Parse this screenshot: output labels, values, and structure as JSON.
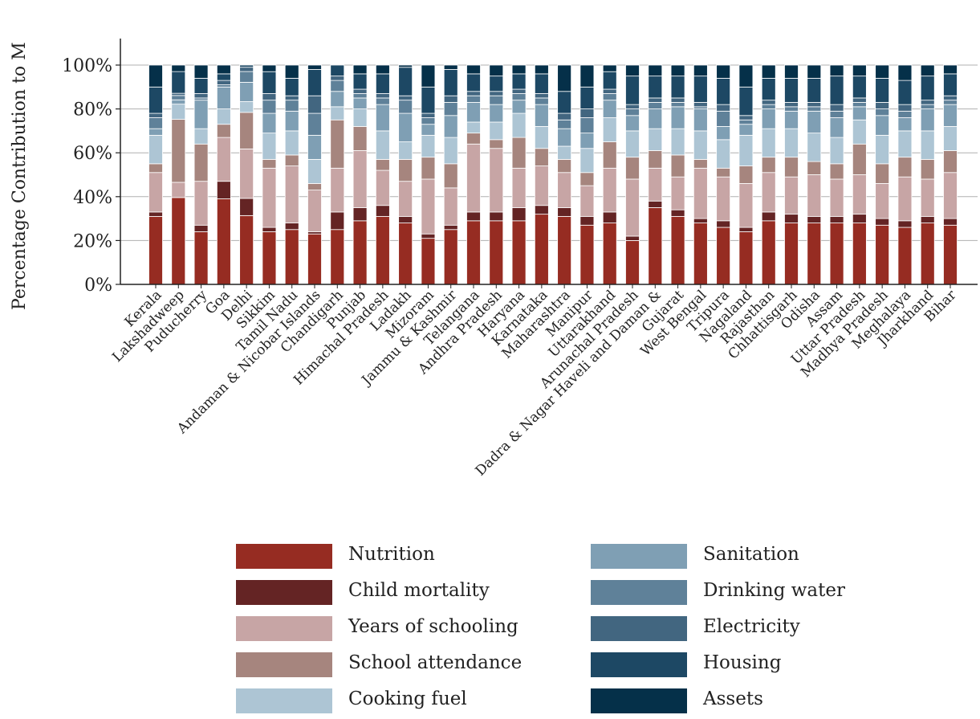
{
  "chart_data": {
    "type": "bar",
    "stacked": true,
    "ylabel": "Percentage Contribution to M",
    "ylim": [
      0,
      100
    ],
    "yticks": [
      0,
      20,
      40,
      60,
      80,
      100
    ],
    "ytick_labels": [
      "0%",
      "20%",
      "40%",
      "60%",
      "80%",
      "100%"
    ],
    "grid": "horizontal",
    "legend_position": "bottom",
    "categories": [
      "Kerala",
      "Lakshadweep",
      "Puducherry",
      "Goa",
      "Delhi",
      "Sikkim",
      "Tamil Nadu",
      "Andaman & Nicobar Islands",
      "Chandigarh",
      "Punjab",
      "Himachal Pradesh",
      "Ladakh",
      "Mizoram",
      "Jammu & Kashmir",
      "Telangana",
      "Andhra Pradesh",
      "Haryana",
      "Karnataka",
      "Maharashtra",
      "Manipur",
      "Uttarakhand",
      "Arunachal Pradesh",
      "Dadra & Nagar Haveli and Daman &",
      "Gujarat",
      "West Bengal",
      "Tripura",
      "Nagaland",
      "Rajasthan",
      "Chhattisgarh",
      "Odisha",
      "Assam",
      "Uttar Pradesh",
      "Madhya Pradesh",
      "Meghalaya",
      "Jharkhand",
      "Bihar"
    ],
    "series": [
      {
        "name": "Nutrition",
        "color": "#962c22",
        "values": [
          31,
          40,
          24,
          39,
          32,
          24,
          25,
          23,
          25,
          29,
          31,
          28,
          21,
          25,
          29,
          29,
          29,
          32,
          31,
          27,
          28,
          20,
          35,
          31,
          28,
          26,
          24,
          29,
          28,
          28,
          28,
          28,
          27,
          26,
          28,
          27
        ]
      },
      {
        "name": "Child mortality",
        "color": "#642424",
        "values": [
          2,
          0,
          3,
          8,
          8,
          2,
          3,
          1,
          8,
          6,
          5,
          3,
          2,
          2,
          4,
          4,
          6,
          4,
          4,
          4,
          5,
          2,
          3,
          3,
          2,
          3,
          2,
          4,
          4,
          3,
          3,
          4,
          3,
          3,
          3,
          3
        ]
      },
      {
        "name": "Years of schooling",
        "color": "#c7a5a5",
        "values": [
          18,
          7,
          20,
          20,
          23,
          27,
          26,
          19,
          20,
          26,
          16,
          16,
          25,
          17,
          31,
          29,
          18,
          18,
          16,
          14,
          20,
          26,
          15,
          15,
          23,
          20,
          20,
          18,
          17,
          19,
          17,
          18,
          16,
          20,
          17,
          21
        ]
      },
      {
        "name": "School attendance",
        "color": "#a6857e",
        "values": [
          4,
          29,
          17,
          6,
          17,
          4,
          5,
          3,
          22,
          11,
          5,
          10,
          10,
          11,
          5,
          4,
          14,
          8,
          6,
          6,
          12,
          10,
          8,
          10,
          4,
          4,
          8,
          7,
          9,
          6,
          7,
          14,
          9,
          9,
          9,
          10
        ]
      },
      {
        "name": "Cooking fuel",
        "color": "#adc5d4",
        "values": [
          13,
          7,
          7,
          7,
          5,
          12,
          11,
          11,
          6,
          8,
          13,
          8,
          10,
          12,
          5,
          8,
          11,
          10,
          6,
          11,
          11,
          12,
          10,
          12,
          13,
          13,
          14,
          13,
          13,
          13,
          12,
          11,
          13,
          12,
          13,
          11
        ]
      },
      {
        "name": "Sanitation",
        "color": "#7f9fb4",
        "values": [
          3,
          2,
          13,
          10,
          9,
          9,
          9,
          11,
          7,
          5,
          12,
          13,
          5,
          10,
          9,
          8,
          6,
          10,
          8,
          7,
          8,
          7,
          9,
          10,
          10,
          6,
          5,
          9,
          8,
          10,
          9,
          6,
          9,
          6,
          10,
          10
        ]
      },
      {
        "name": "Drinking water",
        "color": "#5f8199",
        "values": [
          5,
          2,
          1,
          1,
          5,
          6,
          5,
          10,
          5,
          2,
          3,
          6,
          3,
          6,
          3,
          4,
          3,
          3,
          4,
          7,
          3,
          3,
          3,
          2,
          1,
          7,
          2,
          2,
          2,
          2,
          3,
          2,
          3,
          3,
          2,
          2
        ]
      },
      {
        "name": "Electricity",
        "color": "#426680",
        "values": [
          2,
          1,
          2,
          2,
          2,
          3,
          2,
          8,
          2,
          2,
          2,
          2,
          2,
          3,
          2,
          2,
          2,
          2,
          3,
          4,
          2,
          2,
          2,
          2,
          2,
          3,
          2,
          2,
          2,
          2,
          3,
          2,
          3,
          3,
          2,
          2
        ]
      },
      {
        "name": "Housing",
        "color": "#1d4864",
        "values": [
          12,
          10,
          7,
          3,
          1,
          10,
          8,
          12,
          5,
          7,
          9,
          13,
          12,
          12,
          8,
          7,
          7,
          9,
          10,
          10,
          8,
          13,
          10,
          10,
          12,
          12,
          13,
          10,
          11,
          11,
          13,
          10,
          11,
          11,
          11,
          10
        ]
      },
      {
        "name": "Assets",
        "color": "#053049",
        "values": [
          10,
          3,
          6,
          4,
          0,
          3,
          6,
          2,
          0,
          4,
          4,
          1,
          10,
          2,
          4,
          5,
          4,
          4,
          12,
          10,
          3,
          5,
          5,
          5,
          5,
          6,
          10,
          6,
          6,
          6,
          5,
          5,
          6,
          7,
          5,
          4
        ]
      }
    ]
  }
}
